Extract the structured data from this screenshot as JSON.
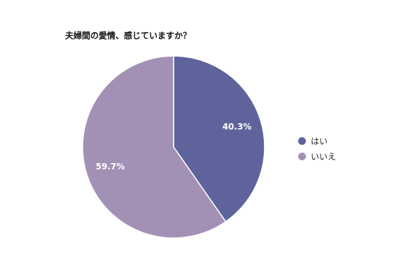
{
  "title": "夫婦間の愛情、感じていますか？",
  "colors": {
    "yes": "#5f639c",
    "no": "#a291b5"
  },
  "chart_data": {
    "type": "pie",
    "title": "夫婦間の愛情、感じていますか？",
    "categories": [
      "はい",
      "いいえ"
    ],
    "values": [
      40.3,
      59.7
    ],
    "data_labels": [
      "40.3%",
      "59.7%"
    ],
    "colors": [
      "#5f639c",
      "#a291b5"
    ],
    "legend": "right"
  },
  "legend": {
    "items": [
      {
        "label": "はい",
        "color": "#5f639c"
      },
      {
        "label": "いいえ",
        "color": "#a291b5"
      }
    ]
  }
}
